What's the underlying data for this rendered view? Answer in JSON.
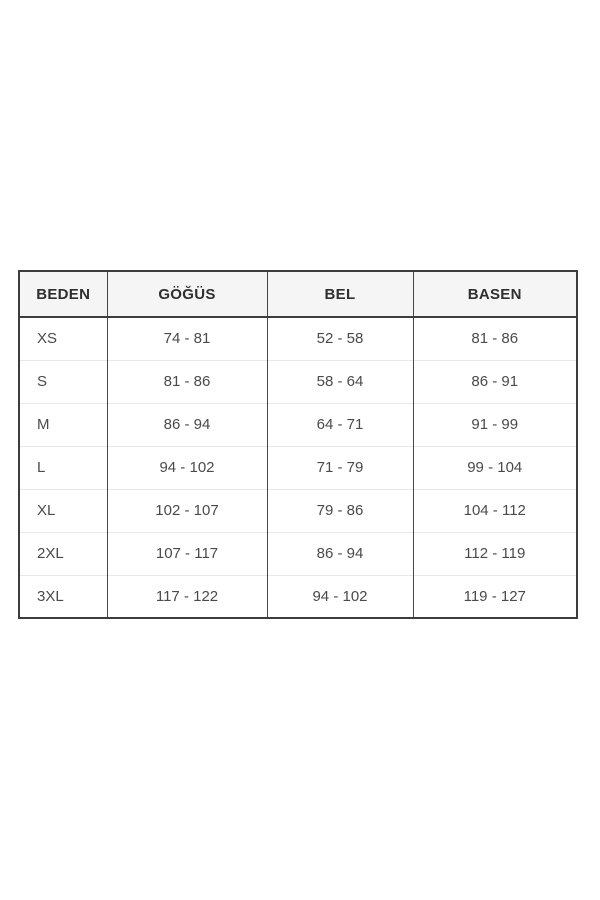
{
  "size_chart": {
    "headers": {
      "size": "BEDEN",
      "chest": "GÖĞÜS",
      "waist": "BEL",
      "hips": "BASEN"
    },
    "rows": [
      {
        "size": "XS",
        "chest": "74 - 81",
        "waist": "52 - 58",
        "hips": "81 - 86"
      },
      {
        "size": "S",
        "chest": "81 - 86",
        "waist": "58 - 64",
        "hips": "86 - 91"
      },
      {
        "size": "M",
        "chest": "86 - 94",
        "waist": "64 - 71",
        "hips": "91 - 99"
      },
      {
        "size": "L",
        "chest": "94 - 102",
        "waist": "71 - 79",
        "hips": "99 - 104"
      },
      {
        "size": "XL",
        "chest": "102 - 107",
        "waist": "79 - 86",
        "hips": "104 - 112"
      },
      {
        "size": "2XL",
        "chest": "107 - 117",
        "waist": "86 - 94",
        "hips": "112 - 119"
      },
      {
        "size": "3XL",
        "chest": "117 - 122",
        "waist": "94 - 102",
        "hips": "119 - 127"
      }
    ],
    "colors": {
      "header_background": "#f5f5f5",
      "outer_border": "#3d3d3d",
      "column_divider": "#474747",
      "row_divider": "#e8e8e8",
      "header_text": "#2f2f2f",
      "cell_text": "#4a4a4a",
      "page_background": "#ffffff"
    }
  }
}
